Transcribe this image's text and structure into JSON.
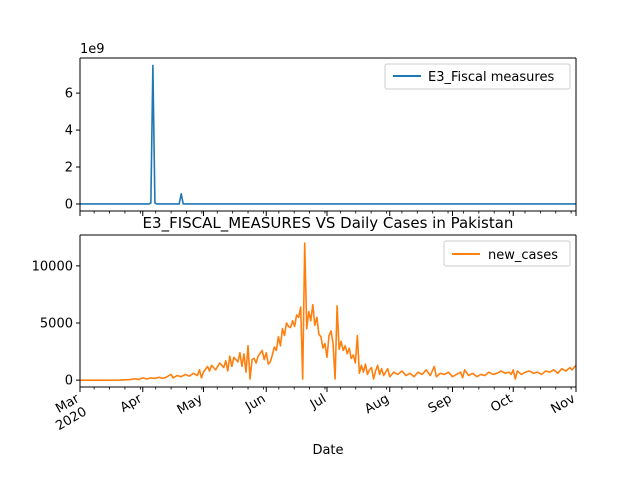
{
  "chart_data": [
    {
      "type": "line",
      "title": "",
      "xlabel": "",
      "ylabel": "",
      "offset_text": "1e9",
      "yticks": [
        0,
        2,
        4,
        6
      ],
      "ytick_labels": [
        "0",
        "2",
        "4",
        "6"
      ],
      "ylim": [
        -0.38,
        7.9
      ],
      "xlim": [
        0,
        245
      ],
      "legend_position": "upper-right",
      "series": [
        {
          "name": "E3_Fiscal measures",
          "color": "#1f77b4",
          "scale": "1e9",
          "points": [
            [
              0,
              0
            ],
            [
              34,
              0
            ],
            [
              35,
              0.05
            ],
            [
              36,
              7.5
            ],
            [
              37,
              0.05
            ],
            [
              38,
              0
            ],
            [
              49,
              0
            ],
            [
              50,
              0.55
            ],
            [
              51,
              0
            ],
            [
              245,
              0
            ]
          ]
        }
      ]
    },
    {
      "type": "line",
      "title": "E3_FISCAL_MEASURES VS Daily Cases in Pakistan",
      "xlabel": "Date",
      "ylabel": "",
      "yticks": [
        0,
        5000,
        10000
      ],
      "ytick_labels": [
        "0",
        "5000",
        "10000"
      ],
      "ylim": [
        -600,
        12700
      ],
      "xlim": [
        0,
        245
      ],
      "x_start_date": "2020-03-01",
      "xtick_labels": [
        {
          "label": "Mar\n2020",
          "day": 0
        },
        {
          "label": "Apr",
          "day": 31
        },
        {
          "label": "May",
          "day": 61
        },
        {
          "label": "Jun",
          "day": 92
        },
        {
          "label": "Jul",
          "day": 122
        },
        {
          "label": "Aug",
          "day": 153
        },
        {
          "label": "Sep",
          "day": 184
        },
        {
          "label": "Oct",
          "day": 214
        },
        {
          "label": "Nov",
          "day": 245
        }
      ],
      "legend_position": "upper-right",
      "series": [
        {
          "name": "new_cases",
          "color": "#ff7f0e",
          "points": [
            [
              0,
              0
            ],
            [
              10,
              0
            ],
            [
              20,
              10
            ],
            [
              25,
              50
            ],
            [
              27,
              120
            ],
            [
              29,
              60
            ],
            [
              31,
              200
            ],
            [
              33,
              100
            ],
            [
              35,
              200
            ],
            [
              37,
              150
            ],
            [
              39,
              250
            ],
            [
              41,
              150
            ],
            [
              43,
              300
            ],
            [
              45,
              500
            ],
            [
              46,
              200
            ],
            [
              48,
              400
            ],
            [
              50,
              300
            ],
            [
              52,
              500
            ],
            [
              54,
              350
            ],
            [
              56,
              600
            ],
            [
              58,
              400
            ],
            [
              59,
              900
            ],
            [
              60,
              200
            ],
            [
              61,
              700
            ],
            [
              63,
              1200
            ],
            [
              64,
              800
            ],
            [
              65,
              1300
            ],
            [
              67,
              900
            ],
            [
              69,
              1500
            ],
            [
              71,
              1100
            ],
            [
              72,
              1700
            ],
            [
              73,
              800
            ],
            [
              74,
              2100
            ],
            [
              75,
              1200
            ],
            [
              76,
              2000
            ],
            [
              78,
              1600
            ],
            [
              79,
              2400
            ],
            [
              80,
              1200
            ],
            [
              81,
              2300
            ],
            [
              82,
              700
            ],
            [
              83,
              3000
            ],
            [
              84,
              100
            ],
            [
              85,
              1800
            ],
            [
              86,
              1900
            ],
            [
              87,
              1500
            ],
            [
              88,
              2100
            ],
            [
              90,
              2600
            ],
            [
              91,
              1800
            ],
            [
              92,
              2400
            ],
            [
              93,
              1400
            ],
            [
              94,
              1600
            ],
            [
              95,
              2200
            ],
            [
              96,
              2900
            ],
            [
              97,
              2600
            ],
            [
              98,
              3800
            ],
            [
              99,
              3000
            ],
            [
              100,
              4500
            ],
            [
              101,
              3900
            ],
            [
              102,
              5000
            ],
            [
              103,
              4700
            ],
            [
              104,
              4600
            ],
            [
              105,
              5200
            ],
            [
              106,
              4700
            ],
            [
              107,
              5700
            ],
            [
              108,
              5500
            ],
            [
              109,
              6400
            ],
            [
              110,
              100
            ],
            [
              111,
              12000
            ],
            [
              112,
              4500
            ],
            [
              113,
              6000
            ],
            [
              114,
              5200
            ],
            [
              115,
              6600
            ],
            [
              116,
              4800
            ],
            [
              117,
              5500
            ],
            [
              118,
              4000
            ],
            [
              119,
              3800
            ],
            [
              120,
              2800
            ],
            [
              121,
              3200
            ],
            [
              122,
              2000
            ],
            [
              123,
              3900
            ],
            [
              124,
              4300
            ],
            [
              125,
              3200
            ],
            [
              126,
              100
            ],
            [
              127,
              6500
            ],
            [
              128,
              2700
            ],
            [
              129,
              3400
            ],
            [
              130,
              2600
            ],
            [
              131,
              3000
            ],
            [
              132,
              2300
            ],
            [
              133,
              2800
            ],
            [
              134,
              1900
            ],
            [
              135,
              2200
            ],
            [
              136,
              1500
            ],
            [
              137,
              3900
            ],
            [
              138,
              600
            ],
            [
              139,
              1300
            ],
            [
              140,
              700
            ],
            [
              141,
              1400
            ],
            [
              142,
              500
            ],
            [
              143,
              900
            ],
            [
              144,
              1100
            ],
            [
              145,
              100
            ],
            [
              146,
              800
            ],
            [
              147,
              1300
            ],
            [
              148,
              500
            ],
            [
              149,
              1000
            ],
            [
              150,
              400
            ],
            [
              151,
              700
            ],
            [
              152,
              1000
            ],
            [
              153,
              300
            ],
            [
              155,
              700
            ],
            [
              157,
              500
            ],
            [
              159,
              800
            ],
            [
              161,
              400
            ],
            [
              163,
              600
            ],
            [
              165,
              300
            ],
            [
              167,
              700
            ],
            [
              169,
              500
            ],
            [
              171,
              900
            ],
            [
              173,
              400
            ],
            [
              175,
              1200
            ],
            [
              176,
              300
            ],
            [
              178,
              600
            ],
            [
              180,
              500
            ],
            [
              182,
              700
            ],
            [
              184,
              300
            ],
            [
              186,
              500
            ],
            [
              188,
              700
            ],
            [
              189,
              200
            ],
            [
              190,
              900
            ],
            [
              192,
              400
            ],
            [
              194,
              600
            ],
            [
              196,
              300
            ],
            [
              198,
              500
            ],
            [
              200,
              400
            ],
            [
              202,
              700
            ],
            [
              204,
              500
            ],
            [
              206,
              600
            ],
            [
              208,
              800
            ],
            [
              210,
              600
            ],
            [
              212,
              700
            ],
            [
              213,
              500
            ],
            [
              214,
              900
            ],
            [
              215,
              100
            ],
            [
              216,
              800
            ],
            [
              218,
              500
            ],
            [
              220,
              700
            ],
            [
              222,
              800
            ],
            [
              224,
              600
            ],
            [
              226,
              700
            ],
            [
              228,
              500
            ],
            [
              230,
              800
            ],
            [
              232,
              700
            ],
            [
              234,
              900
            ],
            [
              236,
              600
            ],
            [
              238,
              1000
            ],
            [
              240,
              800
            ],
            [
              242,
              1100
            ],
            [
              243,
              900
            ],
            [
              245,
              1300
            ]
          ]
        }
      ]
    }
  ]
}
